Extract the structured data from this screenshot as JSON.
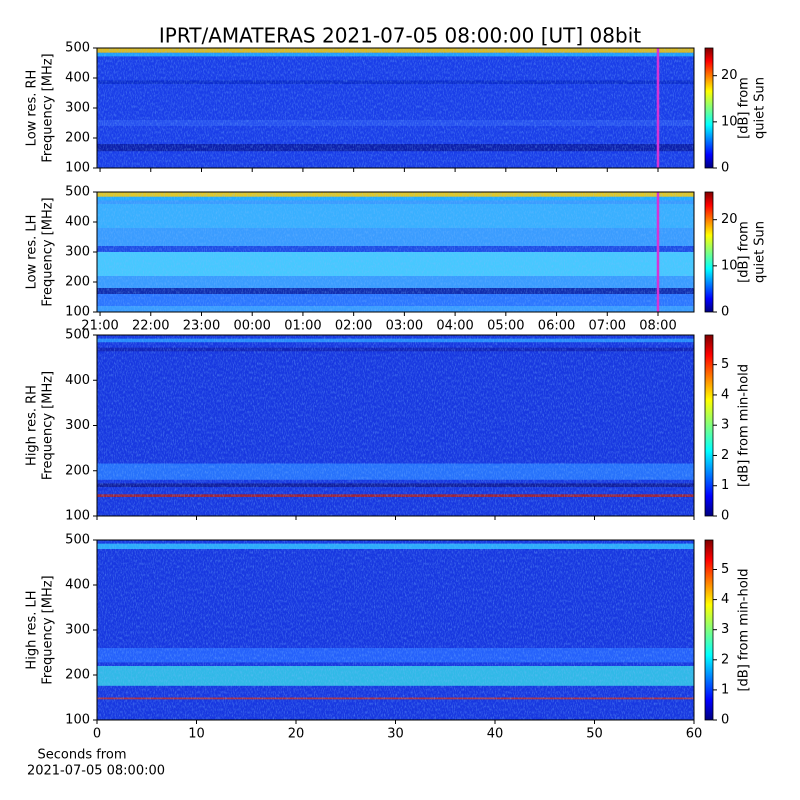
{
  "title": "IPRT/AMATERAS 2021-07-05 08:00:00 [UT]   08bit",
  "chart_data": [
    {
      "type": "heatmap",
      "ylabel": [
        "Low res. RH",
        "Frequency [MHz]"
      ],
      "ylim": [
        100,
        500
      ],
      "yticks": [
        100,
        200,
        300,
        400,
        500
      ],
      "vline": 32,
      "vline_color": "#d633d6",
      "zlabel": [
        "[dB] from",
        "quiet Sun"
      ],
      "zlim": [
        0,
        26
      ],
      "zticks": [
        0,
        10,
        20
      ]
    },
    {
      "type": "heatmap",
      "ylabel": [
        "Low res. LH",
        "Frequency [MHz]"
      ],
      "ylim": [
        100,
        500
      ],
      "yticks": [
        100,
        200,
        300,
        400,
        500
      ],
      "xlim": [
        20.94,
        32.71
      ],
      "xticks": [
        {
          "value": 21,
          "label": "21:00"
        },
        {
          "value": 22,
          "label": "22:00"
        },
        {
          "value": 23,
          "label": "23:00"
        },
        {
          "value": 24,
          "label": "00:00"
        },
        {
          "value": 25,
          "label": "01:00"
        },
        {
          "value": 26,
          "label": "02:00"
        },
        {
          "value": 27,
          "label": "03:00"
        },
        {
          "value": 28,
          "label": "04:00"
        },
        {
          "value": 29,
          "label": "05:00"
        },
        {
          "value": 30,
          "label": "06:00"
        },
        {
          "value": 31,
          "label": "07:00"
        },
        {
          "value": 32,
          "label": "08:00"
        }
      ],
      "vline": 32,
      "vline_color": "#d633d6",
      "zlabel": [
        "[dB] from",
        "quiet Sun"
      ],
      "zlim": [
        0,
        26
      ],
      "zticks": [
        0,
        10,
        20
      ]
    },
    {
      "type": "heatmap",
      "ylabel": [
        "High res. RH",
        "Frequency [MHz]"
      ],
      "ylim": [
        100,
        500
      ],
      "yticks": [
        100,
        200,
        300,
        400,
        500
      ],
      "zlabel": [
        "[dB] from min-hold"
      ],
      "zlim": [
        0,
        5.98
      ],
      "zticks": [
        0,
        1,
        2,
        3,
        4,
        5
      ]
    },
    {
      "type": "heatmap",
      "ylabel": [
        "High res. LH",
        "Frequency [MHz]"
      ],
      "ylim": [
        100,
        500
      ],
      "yticks": [
        100,
        200,
        300,
        400,
        500
      ],
      "xlim": [
        0,
        60
      ],
      "xticks": [
        0,
        10,
        20,
        30,
        40,
        50,
        60
      ],
      "xlabel": [
        "Seconds from",
        "2021-07-05 08:00:00"
      ],
      "zlabel": [
        "[dB] from min-hold"
      ],
      "zlim": [
        0,
        5.98
      ],
      "zticks": [
        0,
        1,
        2,
        3,
        4,
        5
      ]
    }
  ]
}
